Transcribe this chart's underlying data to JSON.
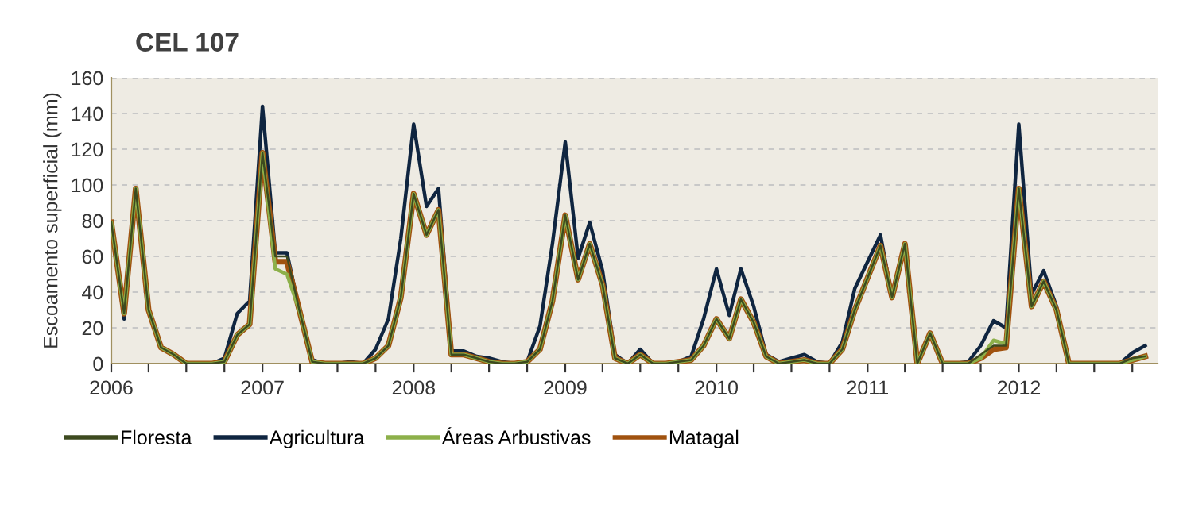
{
  "chart_data": {
    "type": "line",
    "title": "CEL 107",
    "ylabel": "Escoamento superficial (mm)",
    "x": [
      "2006-01",
      "2006-02",
      "2006-03",
      "2006-04",
      "2006-05",
      "2006-06",
      "2006-07",
      "2006-08",
      "2006-09",
      "2006-10",
      "2006-11",
      "2006-12",
      "2007-01",
      "2007-02",
      "2007-03",
      "2007-04",
      "2007-05",
      "2007-06",
      "2007-07",
      "2007-08",
      "2007-09",
      "2007-10",
      "2007-11",
      "2007-12",
      "2008-01",
      "2008-02",
      "2008-03",
      "2008-04",
      "2008-05",
      "2008-06",
      "2008-07",
      "2008-08",
      "2008-09",
      "2008-10",
      "2008-11",
      "2008-12",
      "2009-01",
      "2009-02",
      "2009-03",
      "2009-04",
      "2009-05",
      "2009-06",
      "2009-07",
      "2009-08",
      "2009-09",
      "2009-10",
      "2009-11",
      "2009-12",
      "2010-01",
      "2010-02",
      "2010-03",
      "2010-04",
      "2010-05",
      "2010-06",
      "2010-07",
      "2010-08",
      "2010-09",
      "2010-10",
      "2010-11",
      "2010-12",
      "2011-01",
      "2011-02",
      "2011-03",
      "2011-04",
      "2011-05",
      "2011-06",
      "2011-07",
      "2011-08",
      "2011-09",
      "2011-10",
      "2011-11",
      "2011-12",
      "2012-01",
      "2012-02",
      "2012-03",
      "2012-04",
      "2012-05",
      "2012-06",
      "2012-07",
      "2012-08",
      "2012-09",
      "2012-10",
      "2012-11"
    ],
    "series": [
      {
        "name": "Floresta",
        "color": "#3d4a1f",
        "values": [
          79,
          28,
          98,
          30,
          9,
          5,
          0,
          0,
          0,
          1,
          16,
          22,
          118,
          60,
          60,
          29,
          1,
          0,
          0,
          0,
          0,
          3,
          10,
          37,
          95,
          72,
          86,
          5,
          5,
          3,
          1,
          0,
          0,
          1,
          8,
          35,
          83,
          47,
          67,
          44,
          3,
          0,
          5,
          0,
          0,
          1,
          2,
          10,
          25,
          14,
          36,
          23,
          4,
          0,
          1,
          2,
          0,
          0,
          8,
          30,
          48,
          66,
          37,
          67,
          0,
          17,
          0,
          0,
          0,
          5,
          10,
          10,
          98,
          32,
          46,
          30,
          0,
          0,
          0,
          0,
          0,
          3,
          4
        ]
      },
      {
        "name": "Agricultura",
        "color": "#0f2540",
        "values": [
          78,
          25,
          97,
          30,
          9,
          5,
          0,
          0,
          0,
          3,
          28,
          35,
          144,
          62,
          62,
          29,
          2,
          0,
          0,
          1,
          0,
          8,
          25,
          70,
          134,
          88,
          98,
          7,
          7,
          4,
          3,
          1,
          0,
          1,
          21,
          67,
          124,
          59,
          79,
          52,
          5,
          0,
          8,
          0,
          0,
          1,
          4,
          25,
          53,
          27,
          53,
          32,
          5,
          1,
          3,
          5,
          1,
          0,
          12,
          42,
          57,
          72,
          37,
          67,
          0,
          17,
          0,
          0,
          1,
          10,
          24,
          20,
          134,
          39,
          52,
          32,
          0,
          0,
          0,
          0,
          0,
          6,
          10
        ]
      },
      {
        "name": "Áreas Arbustivas",
        "color": "#8db04a",
        "values": [
          79,
          28,
          98,
          30,
          9,
          5,
          0,
          0,
          0,
          1,
          16,
          22,
          118,
          53,
          50,
          29,
          1,
          0,
          0,
          0,
          0,
          3,
          10,
          37,
          95,
          72,
          86,
          5,
          5,
          3,
          1,
          0,
          0,
          1,
          8,
          35,
          83,
          47,
          67,
          44,
          3,
          0,
          5,
          0,
          0,
          1,
          2,
          10,
          25,
          14,
          36,
          23,
          4,
          0,
          1,
          2,
          0,
          0,
          8,
          30,
          48,
          66,
          37,
          67,
          0,
          17,
          0,
          0,
          0,
          3,
          13,
          11,
          98,
          32,
          46,
          30,
          0,
          0,
          0,
          0,
          0,
          2,
          4
        ]
      },
      {
        "name": "Matagal",
        "color": "#a0520f",
        "values": [
          79,
          28,
          98,
          30,
          9,
          5,
          0,
          0,
          0,
          1,
          16,
          22,
          118,
          57,
          57,
          29,
          1,
          0,
          0,
          0,
          0,
          3,
          10,
          37,
          95,
          72,
          86,
          5,
          5,
          3,
          1,
          0,
          0,
          1,
          8,
          35,
          83,
          47,
          67,
          44,
          3,
          0,
          5,
          0,
          0,
          1,
          2,
          10,
          25,
          14,
          36,
          23,
          4,
          0,
          1,
          2,
          0,
          0,
          8,
          30,
          48,
          66,
          37,
          67,
          0,
          17,
          0,
          0,
          0,
          3,
          8,
          9,
          98,
          32,
          46,
          30,
          0,
          0,
          0,
          0,
          0,
          2,
          4
        ]
      }
    ],
    "xlim": [
      "2006-01",
      "2012-12"
    ],
    "xticks": [
      {
        "value": "2006-01",
        "label": "2006"
      },
      {
        "value": "2006-04",
        "label": null
      },
      {
        "value": "2006-07",
        "label": null
      },
      {
        "value": "2006-10",
        "label": null
      },
      {
        "value": "2007-01",
        "label": "2007"
      },
      {
        "value": "2007-04",
        "label": null
      },
      {
        "value": "2007-07",
        "label": null
      },
      {
        "value": "2007-10",
        "label": null
      },
      {
        "value": "2008-01",
        "label": "2008"
      },
      {
        "value": "2008-04",
        "label": null
      },
      {
        "value": "2008-07",
        "label": null
      },
      {
        "value": "2008-10",
        "label": null
      },
      {
        "value": "2009-01",
        "label": "2009"
      },
      {
        "value": "2009-04",
        "label": null
      },
      {
        "value": "2009-07",
        "label": null
      },
      {
        "value": "2009-10",
        "label": null
      },
      {
        "value": "2010-01",
        "label": "2010"
      },
      {
        "value": "2010-04",
        "label": null
      },
      {
        "value": "2010-07",
        "label": null
      },
      {
        "value": "2010-10",
        "label": null
      },
      {
        "value": "2011-01",
        "label": "2011"
      },
      {
        "value": "2011-04",
        "label": null
      },
      {
        "value": "2011-07",
        "label": null
      },
      {
        "value": "2011-10",
        "label": null
      },
      {
        "value": "2012-01",
        "label": "2012"
      },
      {
        "value": "2012-04",
        "label": null
      },
      {
        "value": "2012-07",
        "label": null
      },
      {
        "value": "2012-10",
        "label": null
      }
    ],
    "ylim": [
      0,
      160
    ],
    "yticks": [
      0,
      20,
      40,
      60,
      80,
      100,
      120,
      140,
      160
    ],
    "grid": "y",
    "legend": "bottom left",
    "marker": "none",
    "line_style": "solid"
  }
}
